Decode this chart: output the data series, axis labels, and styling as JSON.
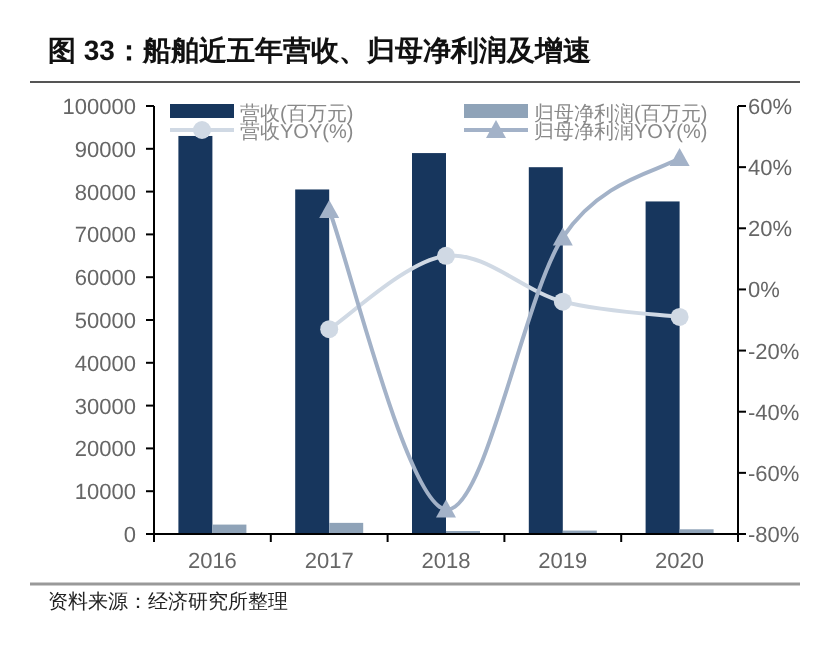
{
  "chart_data": {
    "type": "bar",
    "title": "图 33：船舶近五年营收、归母净利润及增速",
    "categories": [
      "2016",
      "2017",
      "2018",
      "2019",
      "2020"
    ],
    "series": [
      {
        "name": "营收(百万元)",
        "color": "#17365d",
        "values": [
          93000,
          80500,
          89000,
          85700,
          77700
        ]
      },
      {
        "name": "归母净利润(百万元)",
        "color": "#8fa3b8",
        "values": [
          2200,
          2600,
          700,
          800,
          1100
        ]
      },
      {
        "name": "营收YOY(%)",
        "type": "line",
        "axis": "y2",
        "marker": "circle",
        "color": "#d0d9e4",
        "values": [
          null,
          -13,
          11,
          -4,
          -9
        ]
      },
      {
        "name": "归母净利润YOY(%)",
        "type": "line",
        "axis": "y2",
        "marker": "triangle",
        "color": "#a3b2c8",
        "values": [
          null,
          26,
          -72,
          17,
          43
        ]
      }
    ],
    "ylim": [
      0,
      100000
    ],
    "yticks": [
      0,
      10000,
      20000,
      30000,
      40000,
      50000,
      60000,
      70000,
      80000,
      90000,
      100000
    ],
    "y2lim": [
      -80,
      60
    ],
    "y2ticks": [
      {
        "value": -80,
        "label": "-80%"
      },
      {
        "value": -60,
        "label": "-60%"
      },
      {
        "value": -40,
        "label": "-40%"
      },
      {
        "value": -20,
        "label": "-20%"
      },
      {
        "value": 0,
        "label": "0%"
      },
      {
        "value": 20,
        "label": "20%"
      },
      {
        "value": 40,
        "label": "40%"
      },
      {
        "value": 60,
        "label": "60%"
      }
    ],
    "grid": false,
    "legend": "top",
    "annotations": [
      "资料来源：经济研究所整理"
    ]
  }
}
